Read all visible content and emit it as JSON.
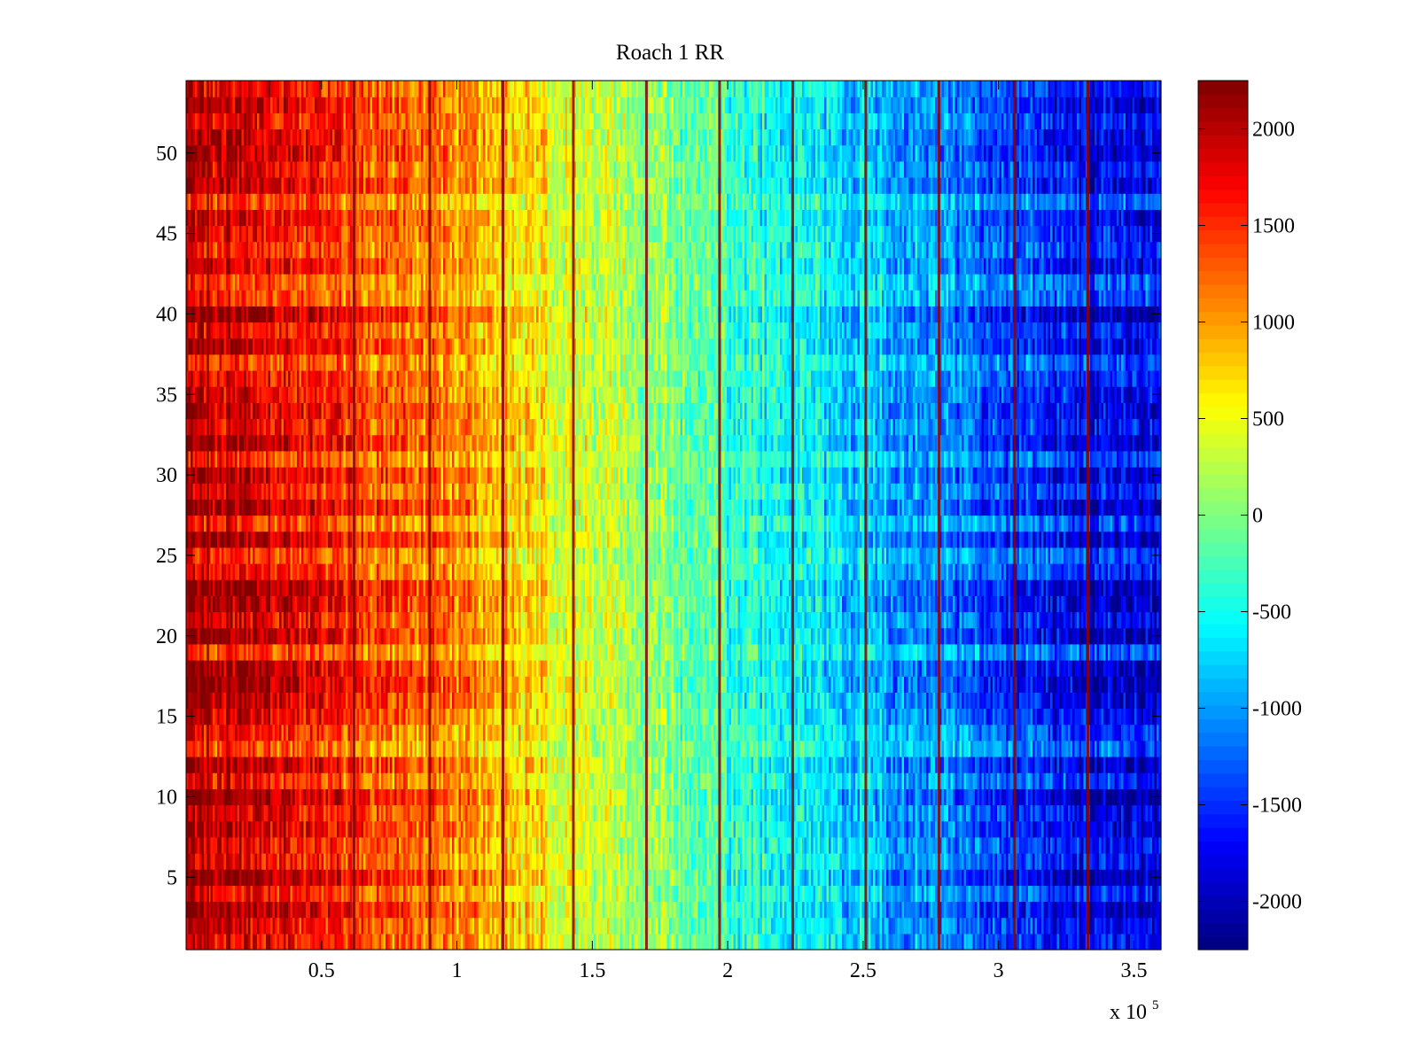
{
  "chart_data": {
    "type": "heatmap",
    "title": "Roach 1 RR",
    "xlabel": "",
    "ylabel": "",
    "x_multiplier_label": {
      "base": "x 10",
      "exponent": "5"
    },
    "xlim": [
      0,
      3.6
    ],
    "ylim": [
      0.5,
      54.5
    ],
    "x_ticks": [
      0.5,
      1,
      1.5,
      2,
      2.5,
      3,
      3.5
    ],
    "x_tick_labels": [
      "0.5",
      "1",
      "1.5",
      "2",
      "2.5",
      "3",
      "3.5"
    ],
    "y_ticks": [
      5,
      10,
      15,
      20,
      25,
      30,
      35,
      40,
      45,
      50
    ],
    "y_tick_labels": [
      "5",
      "10",
      "15",
      "20",
      "25",
      "30",
      "35",
      "40",
      "45",
      "50"
    ],
    "n_rows": 54,
    "colormap": "jet",
    "clim": [
      -2250,
      2250
    ],
    "colorbar": {
      "ticks": [
        -2000,
        -1500,
        -1000,
        -500,
        0,
        500,
        1000,
        1500,
        2000
      ],
      "tick_labels": [
        "-2000",
        "-1500",
        "-1000",
        "-500",
        "0",
        "500",
        "1000",
        "1500",
        "2000"
      ]
    },
    "trend_control_points": {
      "x": [
        0,
        0.25,
        0.5,
        0.75,
        1.0,
        1.25,
        1.5,
        1.75,
        2.0,
        2.25,
        2.5,
        2.75,
        3.0,
        3.25,
        3.5,
        3.6
      ],
      "value": [
        1850,
        1700,
        1450,
        1250,
        1000,
        650,
        300,
        50,
        -300,
        -550,
        -750,
        -1000,
        -1350,
        -1550,
        -1700,
        -1650
      ]
    },
    "dark_red_stripes_x": [
      0.08,
      0.62,
      0.9,
      1.17,
      1.43,
      1.7,
      1.97,
      2.24,
      2.51,
      2.78,
      3.06,
      3.33
    ]
  }
}
